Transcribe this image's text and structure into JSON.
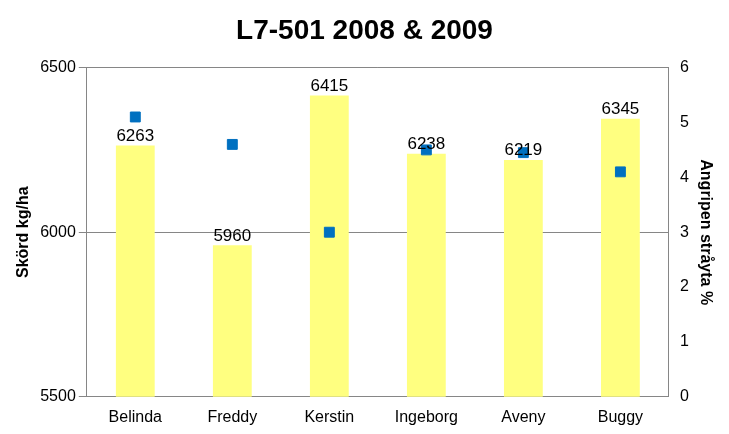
{
  "chart_data": {
    "type": "bar",
    "title": "L7-501 2008 & 2009",
    "categories": [
      "Belinda",
      "Freddy",
      "Kerstin",
      "Ingeborg",
      "Aveny",
      "Buggy"
    ],
    "y_label": "Skörd kg/ha",
    "y2_label": "Angripen stråyta %",
    "series": [
      {
        "type": "bar",
        "color": "#ffff80",
        "values": [
          6263,
          5960,
          6415,
          6238,
          6219,
          6345
        ],
        "data_labels": true
      },
      {
        "type": "scatter",
        "axis": "y2",
        "color": "#0070c0",
        "marker": "square",
        "values": [
          5.1,
          4.6,
          3.0,
          4.5,
          4.45,
          4.1
        ]
      }
    ],
    "ylim": [
      5500,
      6500
    ],
    "yticks": [
      5500,
      6000,
      6500
    ],
    "y2lim": [
      0,
      6
    ],
    "y2ticks": [
      0,
      1,
      2,
      3,
      4,
      5,
      6
    ],
    "grid": true
  }
}
